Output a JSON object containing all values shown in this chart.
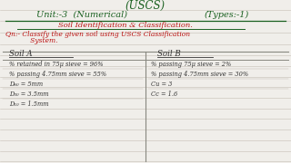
{
  "bg_color": "#f0eeea",
  "line_color": "#c5bfb5",
  "title_top": "(USCS)",
  "title_main_left": "Unit:-3  (Numerical)",
  "title_main_right": "(Types:-1)",
  "subtitle": "Soil Identification & Classification.",
  "question_line1": "Qn:- Classify the given soil using USCS Classification",
  "question_line2": "      System.",
  "soil_a_header": "Soil A",
  "soil_b_header": "Soil B",
  "soil_a_lines": [
    "% retained in 75μ sieve = 96%",
    "% passing 4.75mm sieve = 55%",
    "D₆₀ = 5mm",
    "D₃₀ = 3.5mm",
    "D₁₀ = 1.5mm"
  ],
  "soil_b_lines": [
    "% passing 75μ sieve = 2%",
    "% passing 4.75mm sieve = 30%",
    "Cu = 3",
    "Cc = 1.6"
  ],
  "green_color": "#1a6020",
  "red_color": "#bb1111",
  "dark_color": "#333333",
  "table_line_color": "#888880"
}
